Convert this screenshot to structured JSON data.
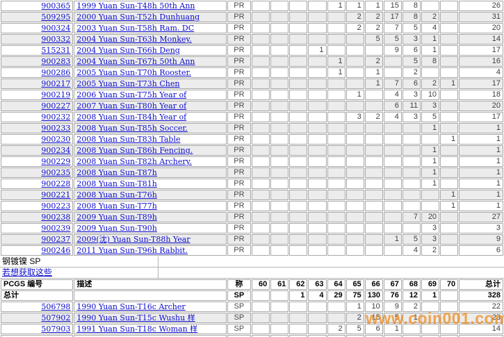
{
  "colors": {
    "link_blue": "#0b0bcc",
    "grid_line": "#a8a8a8",
    "alt_row_bg": "#ececec",
    "header_bg": "#d5d5d5",
    "watermark_orange": "#ee942d",
    "count_text": "#3d3d42"
  },
  "columns": {
    "id_label": "PCGS 编号",
    "desc_label": "描述",
    "prefix_label": "称",
    "grades": [
      "60",
      "61",
      "62",
      "63",
      "64",
      "65",
      "66",
      "67",
      "68",
      "69",
      "70"
    ],
    "total_label": "总计"
  },
  "top_table": {
    "rows": [
      {
        "id": "900365",
        "desc": "1999 Yuan Sun-T48h 50th Ann",
        "prefix": "PR",
        "counts": {
          "64": 1,
          "65": 1,
          "66": 1,
          "67": 15,
          "68": 8
        },
        "total": 26
      },
      {
        "id": "509295",
        "desc": "2000 Yuan Sun-T52h Dunhuang",
        "prefix": "PR",
        "counts": {
          "65": 2,
          "66": 2,
          "67": 17,
          "68": 8,
          "69": 2
        },
        "total": 31
      },
      {
        "id": "900324",
        "desc": "2003 Yuan Sun-T58h Ram. DC",
        "prefix": "PR",
        "counts": {
          "65": 2,
          "66": 2,
          "67": 7,
          "68": 5,
          "69": 4
        },
        "total": 20
      },
      {
        "id": "900332",
        "desc": "2004 Yuan Sun-T63h Monkey.",
        "prefix": "PR",
        "counts": {
          "66": 5,
          "67": 5,
          "68": 3,
          "69": 1
        },
        "total": 14
      },
      {
        "id": "515231",
        "desc": "2004 Yuan Sun-T66h Deng",
        "prefix": "PR",
        "counts": {
          "63": 1,
          "67": 9,
          "68": 6,
          "69": 1
        },
        "total": 17
      },
      {
        "id": "900283",
        "desc": "2004 Yuan Sun-T67h 50th Ann",
        "prefix": "PR",
        "counts": {
          "64": 1,
          "66": 2,
          "68": 5,
          "69": 8
        },
        "total": 16
      },
      {
        "id": "900286",
        "desc": "2005 Yuan Sun-T70h Rooster.",
        "prefix": "PR",
        "counts": {
          "64": 1,
          "66": 1,
          "68": 2
        },
        "total": 4
      },
      {
        "id": "900217",
        "desc": "2005 Yuan Sun-T73h Chen",
        "prefix": "PR",
        "counts": {
          "66": 1,
          "67": 7,
          "68": 6,
          "69": 2,
          "70": 1
        },
        "total": 17
      },
      {
        "id": "900219",
        "desc": "2006 Yuan Sun-T75h Year of",
        "prefix": "PR",
        "counts": {
          "65": 1,
          "67": 4,
          "68": 3,
          "69": 10
        },
        "total": 18
      },
      {
        "id": "900227",
        "desc": "2007 Yuan Sun-T80h Year of",
        "prefix": "PR",
        "counts": {
          "67": 6,
          "68": 11,
          "69": 3
        },
        "total": 20
      },
      {
        "id": "900232",
        "desc": "2008 Yuan Sun-T84h Year of",
        "prefix": "PR",
        "counts": {
          "65": 3,
          "66": 2,
          "67": 4,
          "68": 3,
          "69": 5
        },
        "total": 17
      },
      {
        "id": "900233",
        "desc": "2008 Yuan Sun-T85h Soccer.",
        "prefix": "PR",
        "counts": {
          "69": 1
        },
        "total": 1
      },
      {
        "id": "900230",
        "desc": "2008 Yuan Sun-T83h Table",
        "prefix": "PR",
        "counts": {
          "70": 1
        },
        "total": 1
      },
      {
        "id": "900234",
        "desc": "2008 Yuan Sun-T86h Fencing.",
        "prefix": "PR",
        "counts": {
          "69": 1
        },
        "total": 1
      },
      {
        "id": "900229",
        "desc": "2008 Yuan Sun-T82h Archery.",
        "prefix": "PR",
        "counts": {
          "69": 1
        },
        "total": 1
      },
      {
        "id": "900235",
        "desc": "2008 Yuan Sun-T87h",
        "prefix": "PR",
        "counts": {
          "69": 1
        },
        "total": 1
      },
      {
        "id": "900228",
        "desc": "2008 Yuan Sun-T81h",
        "prefix": "PR",
        "counts": {
          "69": 1
        },
        "total": 1
      },
      {
        "id": "900221",
        "desc": "2008 Yuan Sun-T76h",
        "prefix": "PR",
        "counts": {
          "70": 1
        },
        "total": 1
      },
      {
        "id": "900223",
        "desc": "2008 Yuan Sun-T77h",
        "prefix": "PR",
        "counts": {
          "70": 1
        },
        "total": 1
      },
      {
        "id": "900238",
        "desc": "2009 Yuan Sun-T89h",
        "prefix": "PR",
        "counts": {
          "68": 7,
          "69": 20
        },
        "total": 27
      },
      {
        "id": "900239",
        "desc": "2009 Yuan Sun-T90h",
        "prefix": "PR",
        "counts": {
          "69": 3
        },
        "total": 3
      },
      {
        "id": "900237",
        "desc": "2009(沈) Yuan Sun-T88h Year",
        "prefix": "PR",
        "counts": {
          "67": 1,
          "68": 5,
          "69": 3
        },
        "total": 9
      },
      {
        "id": "900246",
        "desc": "2011 Yuan Sun-T96h Rabbit.",
        "prefix": "PR",
        "counts": {
          "68": 4,
          "69": 2
        },
        "total": 6
      }
    ]
  },
  "section": {
    "title": "钢镀镍  SP",
    "link_text": "若想获取这些"
  },
  "bottom_table": {
    "totals_row": {
      "label": "总计",
      "prefix": "SP",
      "counts": {
        "62": 1,
        "63": 4,
        "64": 29,
        "65": 75,
        "66": 130,
        "67": 76,
        "68": 12,
        "69": 1
      },
      "total": 328
    },
    "rows": [
      {
        "id": "506798",
        "desc": "1990 Yuan Sun-T16c Archer",
        "prefix": "SP",
        "counts": {
          "65": 1,
          "66": 10,
          "67": 9,
          "68": 2
        },
        "total": 22
      },
      {
        "id": "507902",
        "desc": "1990 Yuan Sun-T15c Wushu 样",
        "prefix": "SP",
        "counts": {
          "65": 2,
          "66": 15,
          "67": 5,
          "68": 1
        },
        "total": 23
      },
      {
        "id": "507903",
        "desc": "1991 Yuan Sun-T18c Woman 样",
        "prefix": "SP",
        "counts": {
          "64": 2,
          "65": 5,
          "66": 6,
          "67": 1
        },
        "total": 14
      }
    ]
  },
  "watermark": {
    "text": "www.coin001.com"
  }
}
